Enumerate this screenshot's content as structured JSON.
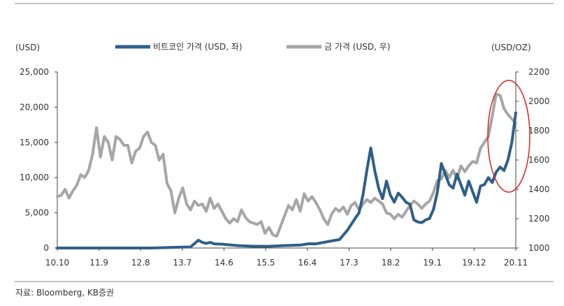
{
  "chart_data": {
    "type": "line",
    "left_unit": "(USD)",
    "right_unit": "(USD/OZ)",
    "x_ticks": [
      "10.10",
      "11.9",
      "12.8",
      "13.7",
      "14.6",
      "15.5",
      "16.4",
      "17.3",
      "18.2",
      "19.1",
      "19.12",
      "20.11"
    ],
    "y_left": {
      "min": 0,
      "max": 25000,
      "ticks": [
        "0",
        "5,000",
        "10,000",
        "15,000",
        "20,000",
        "25,000"
      ]
    },
    "y_right": {
      "min": 1000,
      "max": 2200,
      "ticks": [
        "1000",
        "1200",
        "1400",
        "1600",
        "1800",
        "2000",
        "2200"
      ]
    },
    "series": [
      {
        "name": "비트코인 가격 (USD, 좌)",
        "axis": "left",
        "color": "#2e5f8a",
        "points": [
          [
            0,
            0
          ],
          [
            24,
            0
          ],
          [
            30,
            100
          ],
          [
            34,
            150
          ],
          [
            36,
            1100
          ],
          [
            37,
            800
          ],
          [
            38,
            650
          ],
          [
            39,
            800
          ],
          [
            40,
            600
          ],
          [
            42,
            550
          ],
          [
            44,
            450
          ],
          [
            46,
            350
          ],
          [
            48,
            300
          ],
          [
            50,
            250
          ],
          [
            54,
            250
          ],
          [
            58,
            350
          ],
          [
            62,
            420
          ],
          [
            64,
            600
          ],
          [
            66,
            600
          ],
          [
            68,
            800
          ],
          [
            70,
            1000
          ],
          [
            72,
            1200
          ],
          [
            74,
            2500
          ],
          [
            76,
            4200
          ],
          [
            77,
            5000
          ],
          [
            78,
            7500
          ],
          [
            79,
            11000
          ],
          [
            80,
            14200
          ],
          [
            81,
            11000
          ],
          [
            82,
            8500
          ],
          [
            83,
            7000
          ],
          [
            84,
            9500
          ],
          [
            85,
            7500
          ],
          [
            86,
            6500
          ],
          [
            87,
            7800
          ],
          [
            88,
            7200
          ],
          [
            89,
            6500
          ],
          [
            90,
            6200
          ],
          [
            91,
            4000
          ],
          [
            92,
            3700
          ],
          [
            93,
            3600
          ],
          [
            94,
            4000
          ],
          [
            95,
            4200
          ],
          [
            96,
            5500
          ],
          [
            97,
            8000
          ],
          [
            98,
            12000
          ],
          [
            99,
            10500
          ],
          [
            100,
            9000
          ],
          [
            101,
            8500
          ],
          [
            102,
            10500
          ],
          [
            103,
            9000
          ],
          [
            104,
            7500
          ],
          [
            105,
            9500
          ],
          [
            106,
            8000
          ],
          [
            107,
            6500
          ],
          [
            108,
            8800
          ],
          [
            109,
            9000
          ],
          [
            110,
            10000
          ],
          [
            111,
            9300
          ],
          [
            112,
            10800
          ],
          [
            113,
            11500
          ],
          [
            114,
            11000
          ],
          [
            115,
            12500
          ],
          [
            116,
            15000
          ],
          [
            117,
            19200
          ]
        ]
      },
      {
        "name": "금 가격 (USD, 우)",
        "axis": "right",
        "color": "#a6a6a6",
        "points": [
          [
            0,
            1350
          ],
          [
            1,
            1360
          ],
          [
            2,
            1400
          ],
          [
            3,
            1340
          ],
          [
            4,
            1390
          ],
          [
            5,
            1430
          ],
          [
            6,
            1500
          ],
          [
            7,
            1480
          ],
          [
            8,
            1530
          ],
          [
            9,
            1640
          ],
          [
            10,
            1820
          ],
          [
            11,
            1620
          ],
          [
            12,
            1760
          ],
          [
            13,
            1720
          ],
          [
            14,
            1600
          ],
          [
            15,
            1760
          ],
          [
            16,
            1740
          ],
          [
            17,
            1700
          ],
          [
            18,
            1700
          ],
          [
            19,
            1580
          ],
          [
            20,
            1660
          ],
          [
            21,
            1680
          ],
          [
            22,
            1760
          ],
          [
            23,
            1790
          ],
          [
            24,
            1720
          ],
          [
            25,
            1700
          ],
          [
            26,
            1600
          ],
          [
            27,
            1640
          ],
          [
            28,
            1440
          ],
          [
            29,
            1390
          ],
          [
            30,
            1240
          ],
          [
            31,
            1340
          ],
          [
            32,
            1410
          ],
          [
            33,
            1300
          ],
          [
            34,
            1260
          ],
          [
            35,
            1320
          ],
          [
            36,
            1290
          ],
          [
            37,
            1300
          ],
          [
            38,
            1250
          ],
          [
            39,
            1340
          ],
          [
            40,
            1270
          ],
          [
            41,
            1300
          ],
          [
            42,
            1250
          ],
          [
            43,
            1200
          ],
          [
            44,
            1170
          ],
          [
            45,
            1200
          ],
          [
            46,
            1180
          ],
          [
            47,
            1260
          ],
          [
            48,
            1210
          ],
          [
            49,
            1180
          ],
          [
            50,
            1170
          ],
          [
            51,
            1160
          ],
          [
            52,
            1180
          ],
          [
            53,
            1100
          ],
          [
            54,
            1140
          ],
          [
            55,
            1090
          ],
          [
            56,
            1080
          ],
          [
            57,
            1150
          ],
          [
            58,
            1220
          ],
          [
            59,
            1290
          ],
          [
            60,
            1260
          ],
          [
            61,
            1330
          ],
          [
            62,
            1250
          ],
          [
            63,
            1370
          ],
          [
            64,
            1320
          ],
          [
            65,
            1350
          ],
          [
            66,
            1310
          ],
          [
            67,
            1260
          ],
          [
            68,
            1200
          ],
          [
            69,
            1160
          ],
          [
            70,
            1230
          ],
          [
            71,
            1270
          ],
          [
            72,
            1250
          ],
          [
            73,
            1280
          ],
          [
            74,
            1230
          ],
          [
            75,
            1290
          ],
          [
            76,
            1310
          ],
          [
            77,
            1260
          ],
          [
            78,
            1300
          ],
          [
            79,
            1330
          ],
          [
            80,
            1310
          ],
          [
            81,
            1340
          ],
          [
            82,
            1320
          ],
          [
            83,
            1300
          ],
          [
            84,
            1240
          ],
          [
            85,
            1230
          ],
          [
            86,
            1200
          ],
          [
            87,
            1230
          ],
          [
            88,
            1210
          ],
          [
            89,
            1250
          ],
          [
            90,
            1290
          ],
          [
            91,
            1320
          ],
          [
            92,
            1300
          ],
          [
            93,
            1270
          ],
          [
            94,
            1300
          ],
          [
            95,
            1320
          ],
          [
            96,
            1380
          ],
          [
            97,
            1460
          ],
          [
            98,
            1470
          ],
          [
            99,
            1530
          ],
          [
            100,
            1480
          ],
          [
            101,
            1530
          ],
          [
            102,
            1470
          ],
          [
            103,
            1560
          ],
          [
            104,
            1520
          ],
          [
            105,
            1560
          ],
          [
            106,
            1590
          ],
          [
            107,
            1580
          ],
          [
            108,
            1680
          ],
          [
            109,
            1720
          ],
          [
            110,
            1760
          ],
          [
            111,
            1900
          ],
          [
            112,
            2050
          ],
          [
            113,
            2040
          ],
          [
            114,
            1950
          ],
          [
            115,
            1910
          ],
          [
            116,
            1880
          ],
          [
            117,
            1850
          ]
        ]
      }
    ],
    "highlight": {
      "shape": "ellipse",
      "color": "#e02020"
    },
    "grid": false,
    "legend_position": "top"
  },
  "source": "자료: Bloomberg, KB증권"
}
